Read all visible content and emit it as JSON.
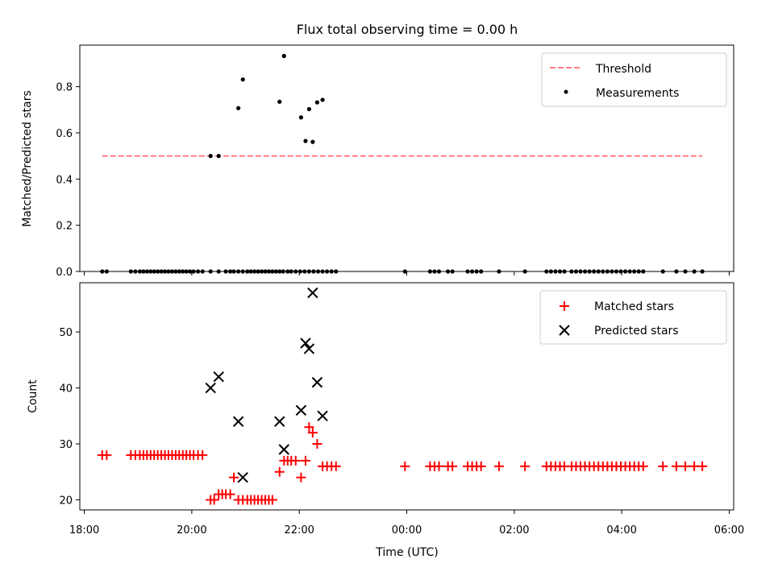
{
  "title": "Flux total observing time = 0.00 h",
  "colors": {
    "threshold": "#ff7f7f",
    "measurement": "#000000",
    "matched": "#ff0000",
    "predicted": "#000000"
  },
  "chart_data": [
    {
      "type": "scatter",
      "ylabel": "Matched/Predicted stars",
      "xlim": [
        "2020-01-01T17:55",
        "2020-01-02T06:05"
      ],
      "ylim": [
        0,
        0.98
      ],
      "yticks": [
        0.0,
        0.2,
        0.4,
        0.6,
        0.8
      ],
      "ytick_labels": [
        "0.0",
        "0.2",
        "0.4",
        "0.6",
        "0.8"
      ],
      "legend_position": "upper right",
      "series": [
        {
          "name": "Threshold",
          "kind": "line",
          "style": "dashed",
          "x": [
            "2020-01-01T18:20",
            "2020-01-02T05:30"
          ],
          "y": [
            0.5,
            0.5
          ]
        },
        {
          "name": "Measurements",
          "kind": "scatter",
          "marker": "dot",
          "x": [
            "2020-01-01T18:20",
            "2020-01-01T18:25",
            "2020-01-01T18:52",
            "2020-01-01T18:57",
            "2020-01-01T19:02",
            "2020-01-01T19:06",
            "2020-01-01T19:10",
            "2020-01-01T19:14",
            "2020-01-01T19:18",
            "2020-01-01T19:22",
            "2020-01-01T19:26",
            "2020-01-01T19:30",
            "2020-01-01T19:34",
            "2020-01-01T19:38",
            "2020-01-01T19:42",
            "2020-01-01T19:46",
            "2020-01-01T19:50",
            "2020-01-01T19:54",
            "2020-01-01T19:58",
            "2020-01-01T20:02",
            "2020-01-01T20:07",
            "2020-01-01T20:12",
            "2020-01-01T20:21",
            "2020-01-01T20:30",
            "2020-01-01T20:38",
            "2020-01-01T20:43",
            "2020-01-01T20:47",
            "2020-01-01T20:52",
            "2020-01-01T20:57",
            "2020-01-01T21:02",
            "2020-01-01T21:06",
            "2020-01-01T21:10",
            "2020-01-01T21:14",
            "2020-01-01T21:18",
            "2020-01-01T21:22",
            "2020-01-01T21:26",
            "2020-01-01T21:30",
            "2020-01-01T21:34",
            "2020-01-01T21:38",
            "2020-01-01T21:42",
            "2020-01-01T21:47",
            "2020-01-01T21:51",
            "2020-01-01T21:56",
            "2020-01-01T22:01",
            "2020-01-01T22:06",
            "2020-01-01T22:11",
            "2020-01-01T22:16",
            "2020-01-01T22:21",
            "2020-01-01T22:26",
            "2020-01-01T22:31",
            "2020-01-01T22:36",
            "2020-01-01T22:41",
            "2020-01-01T23:58",
            "2020-01-02T00:26",
            "2020-01-02T00:31",
            "2020-01-02T00:36",
            "2020-01-02T00:46",
            "2020-01-02T00:51",
            "2020-01-02T01:08",
            "2020-01-02T01:13",
            "2020-01-02T01:18",
            "2020-01-02T01:23",
            "2020-01-02T01:43",
            "2020-01-02T02:12",
            "2020-01-02T02:36",
            "2020-01-02T02:41",
            "2020-01-02T02:46",
            "2020-01-02T02:51",
            "2020-01-02T02:56",
            "2020-01-02T03:04",
            "2020-01-02T03:09",
            "2020-01-02T03:14",
            "2020-01-02T03:19",
            "2020-01-02T03:24",
            "2020-01-02T03:29",
            "2020-01-02T03:34",
            "2020-01-02T03:39",
            "2020-01-02T03:44",
            "2020-01-02T03:49",
            "2020-01-02T03:54",
            "2020-01-02T03:59",
            "2020-01-02T04:04",
            "2020-01-02T04:09",
            "2020-01-02T04:14",
            "2020-01-02T04:19",
            "2020-01-02T04:24",
            "2020-01-02T04:46",
            "2020-01-02T05:01",
            "2020-01-02T05:11",
            "2020-01-02T05:21",
            "2020-01-02T05:30",
            "2020-01-01T20:21",
            "2020-01-01T20:30",
            "2020-01-01T20:52",
            "2020-01-01T20:57",
            "2020-01-01T21:38",
            "2020-01-01T21:43",
            "2020-01-01T22:02",
            "2020-01-01T22:07",
            "2020-01-01T22:11",
            "2020-01-01T22:15",
            "2020-01-01T22:20",
            "2020-01-01T22:26"
          ],
          "y": [
            0,
            0,
            0,
            0,
            0,
            0,
            0,
            0,
            0,
            0,
            0,
            0,
            0,
            0,
            0,
            0,
            0,
            0,
            0,
            0,
            0,
            0,
            0,
            0,
            0,
            0,
            0,
            0,
            0,
            0,
            0,
            0,
            0,
            0,
            0,
            0,
            0,
            0,
            0,
            0,
            0,
            0,
            0,
            0,
            0,
            0,
            0,
            0,
            0,
            0,
            0,
            0,
            0,
            0,
            0,
            0,
            0,
            0,
            0,
            0,
            0,
            0,
            0,
            0,
            0,
            0,
            0,
            0,
            0,
            0,
            0,
            0,
            0,
            0,
            0,
            0,
            0,
            0,
            0,
            0,
            0,
            0,
            0,
            0,
            0,
            0,
            0,
            0,
            0,
            0,
            0,
            0.5,
            0.5,
            0.707,
            0.831,
            0.735,
            0.933,
            0.667,
            0.565,
            0.703,
            0.561,
            0.732,
            0.743
          ]
        }
      ]
    },
    {
      "type": "scatter",
      "xlabel": "Time (UTC)",
      "ylabel": "Count",
      "xlim": [
        "2020-01-01T17:55",
        "2020-01-02T06:05"
      ],
      "ylim": [
        18.2,
        58.8
      ],
      "yticks": [
        20,
        30,
        40,
        50
      ],
      "ytick_labels": [
        "20",
        "30",
        "40",
        "50"
      ],
      "xticks": [
        "2020-01-01T18:00",
        "2020-01-01T20:00",
        "2020-01-01T22:00",
        "2020-01-02T00:00",
        "2020-01-02T02:00",
        "2020-01-02T04:00",
        "2020-01-02T06:00"
      ],
      "xtick_labels": [
        "18:00",
        "20:00",
        "22:00",
        "00:00",
        "02:00",
        "04:00",
        "06:00"
      ],
      "legend_position": "upper right",
      "series": [
        {
          "name": "Matched stars",
          "kind": "scatter",
          "marker": "plus",
          "x": [
            "2020-01-01T18:20",
            "2020-01-01T18:25",
            "2020-01-01T18:52",
            "2020-01-01T18:57",
            "2020-01-01T19:02",
            "2020-01-01T19:06",
            "2020-01-01T19:10",
            "2020-01-01T19:14",
            "2020-01-01T19:18",
            "2020-01-01T19:22",
            "2020-01-01T19:26",
            "2020-01-01T19:30",
            "2020-01-01T19:34",
            "2020-01-01T19:38",
            "2020-01-01T19:42",
            "2020-01-01T19:46",
            "2020-01-01T19:50",
            "2020-01-01T19:54",
            "2020-01-01T19:58",
            "2020-01-01T20:02",
            "2020-01-01T20:07",
            "2020-01-01T20:12",
            "2020-01-01T20:21",
            "2020-01-01T20:25",
            "2020-01-01T20:30",
            "2020-01-01T20:34",
            "2020-01-01T20:38",
            "2020-01-01T20:43",
            "2020-01-01T20:47",
            "2020-01-01T20:52",
            "2020-01-01T20:57",
            "2020-01-01T21:02",
            "2020-01-01T21:06",
            "2020-01-01T21:10",
            "2020-01-01T21:14",
            "2020-01-01T21:18",
            "2020-01-01T21:22",
            "2020-01-01T21:26",
            "2020-01-01T21:30",
            "2020-01-01T21:38",
            "2020-01-01T21:43",
            "2020-01-01T21:47",
            "2020-01-01T21:51",
            "2020-01-01T21:56",
            "2020-01-01T22:02",
            "2020-01-01T22:07",
            "2020-01-01T22:11",
            "2020-01-01T22:15",
            "2020-01-01T22:20",
            "2020-01-01T22:26",
            "2020-01-01T22:31",
            "2020-01-01T22:36",
            "2020-01-01T22:41",
            "2020-01-01T23:58",
            "2020-01-02T00:26",
            "2020-01-02T00:31",
            "2020-01-02T00:36",
            "2020-01-02T00:46",
            "2020-01-02T00:51",
            "2020-01-02T01:08",
            "2020-01-02T01:13",
            "2020-01-02T01:18",
            "2020-01-02T01:23",
            "2020-01-02T01:43",
            "2020-01-02T02:12",
            "2020-01-02T02:36",
            "2020-01-02T02:41",
            "2020-01-02T02:46",
            "2020-01-02T02:51",
            "2020-01-02T02:56",
            "2020-01-02T03:04",
            "2020-01-02T03:09",
            "2020-01-02T03:14",
            "2020-01-02T03:19",
            "2020-01-02T03:24",
            "2020-01-02T03:29",
            "2020-01-02T03:34",
            "2020-01-02T03:39",
            "2020-01-02T03:44",
            "2020-01-02T03:49",
            "2020-01-02T03:54",
            "2020-01-02T03:59",
            "2020-01-02T04:04",
            "2020-01-02T04:09",
            "2020-01-02T04:14",
            "2020-01-02T04:19",
            "2020-01-02T04:24",
            "2020-01-02T04:46",
            "2020-01-02T05:01",
            "2020-01-02T05:11",
            "2020-01-02T05:21",
            "2020-01-02T05:30"
          ],
          "y": [
            28,
            28,
            28,
            28,
            28,
            28,
            28,
            28,
            28,
            28,
            28,
            28,
            28,
            28,
            28,
            28,
            28,
            28,
            28,
            28,
            28,
            28,
            20,
            20,
            21,
            21,
            21,
            21,
            24,
            20,
            20,
            20,
            20,
            20,
            20,
            20,
            20,
            20,
            20,
            25,
            27,
            27,
            27,
            27,
            24,
            27,
            33,
            32,
            30,
            26,
            26,
            26,
            26,
            26,
            26,
            26,
            26,
            26,
            26,
            26,
            26,
            26,
            26,
            26,
            26,
            26,
            26,
            26,
            26,
            26,
            26,
            26,
            26,
            26,
            26,
            26,
            26,
            26,
            26,
            26,
            26,
            26,
            26,
            26,
            26,
            26,
            26,
            26,
            26,
            26,
            26,
            26
          ]
        },
        {
          "name": "Predicted stars",
          "kind": "scatter",
          "marker": "x",
          "x": [
            "2020-01-01T20:21",
            "2020-01-01T20:30",
            "2020-01-01T20:52",
            "2020-01-01T20:57",
            "2020-01-01T21:38",
            "2020-01-01T21:43",
            "2020-01-01T22:02",
            "2020-01-01T22:07",
            "2020-01-01T22:11",
            "2020-01-01T22:15",
            "2020-01-01T22:20",
            "2020-01-01T22:26"
          ],
          "y": [
            40,
            42,
            34,
            24,
            34,
            29,
            36,
            48,
            47,
            57,
            41,
            35
          ]
        }
      ]
    }
  ]
}
